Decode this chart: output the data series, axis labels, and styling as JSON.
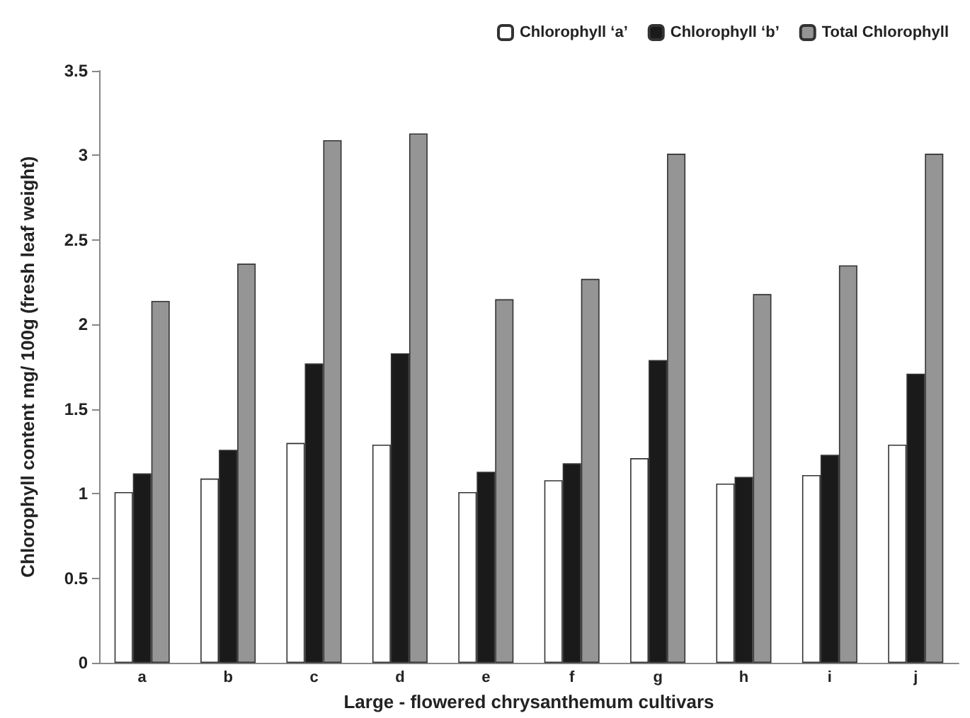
{
  "chart_data": {
    "type": "bar",
    "xlabel": "Large - flowered chrysanthemum cultivars",
    "ylabel": "Chlorophyll content mg/ 100g (fresh leaf weight)",
    "categories": [
      "a",
      "b",
      "c",
      "d",
      "e",
      "f",
      "g",
      "h",
      "i",
      "j"
    ],
    "series": [
      {
        "name": "Chlorophyll ‘a’",
        "color": "#ffffff",
        "values": [
          1.01,
          1.09,
          1.3,
          1.29,
          1.01,
          1.08,
          1.21,
          1.06,
          1.11,
          1.29
        ]
      },
      {
        "name": "Chlorophyll ‘b’",
        "color": "#1a1a1a",
        "values": [
          1.12,
          1.26,
          1.77,
          1.83,
          1.13,
          1.18,
          1.79,
          1.1,
          1.23,
          1.71
        ]
      },
      {
        "name": "Total Chlorophyll",
        "color": "#959595",
        "values": [
          2.14,
          2.36,
          3.09,
          3.13,
          2.15,
          2.27,
          3.01,
          2.18,
          2.35,
          3.01
        ]
      }
    ],
    "ylim": [
      0,
      3.5
    ],
    "yticks": [
      0,
      0.5,
      1,
      1.5,
      2,
      2.5,
      3,
      3.5
    ],
    "grid": false,
    "legend": "top right"
  }
}
